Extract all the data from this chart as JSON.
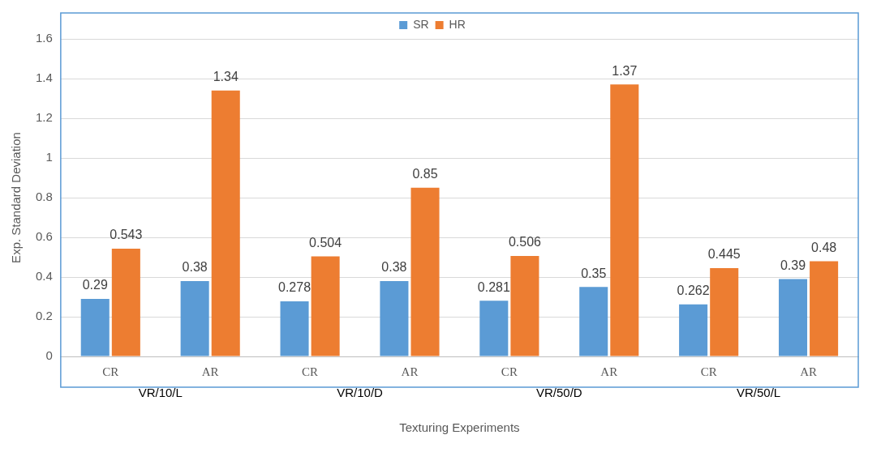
{
  "chart_data": {
    "type": "bar",
    "xlabel": "Texturing Experiments",
    "ylabel": "Exp. Standard Deviation",
    "categories": [
      "CR",
      "AR",
      "CR",
      "AR",
      "CR",
      "AR",
      "CR",
      "AR"
    ],
    "annotations": [
      "VR/10/L",
      "VR/10/D",
      "VR/50/D",
      "VR/50/L"
    ],
    "series": [
      {
        "name": "SR",
        "color": "#5b9bd5",
        "values": [
          0.29,
          0.38,
          0.278,
          0.38,
          0.281,
          0.35,
          0.262,
          0.39
        ]
      },
      {
        "name": "HR",
        "color": "#ed7d31",
        "values": [
          0.543,
          1.34,
          0.504,
          0.85,
          0.506,
          1.37,
          0.445,
          0.48
        ]
      }
    ],
    "ylim": [
      0,
      1.6
    ],
    "yticks": [
      0,
      0.2,
      0.4,
      0.6,
      0.8,
      1,
      1.2,
      1.4,
      1.6
    ],
    "grid": "y",
    "legend": "top",
    "data_labels": true
  }
}
